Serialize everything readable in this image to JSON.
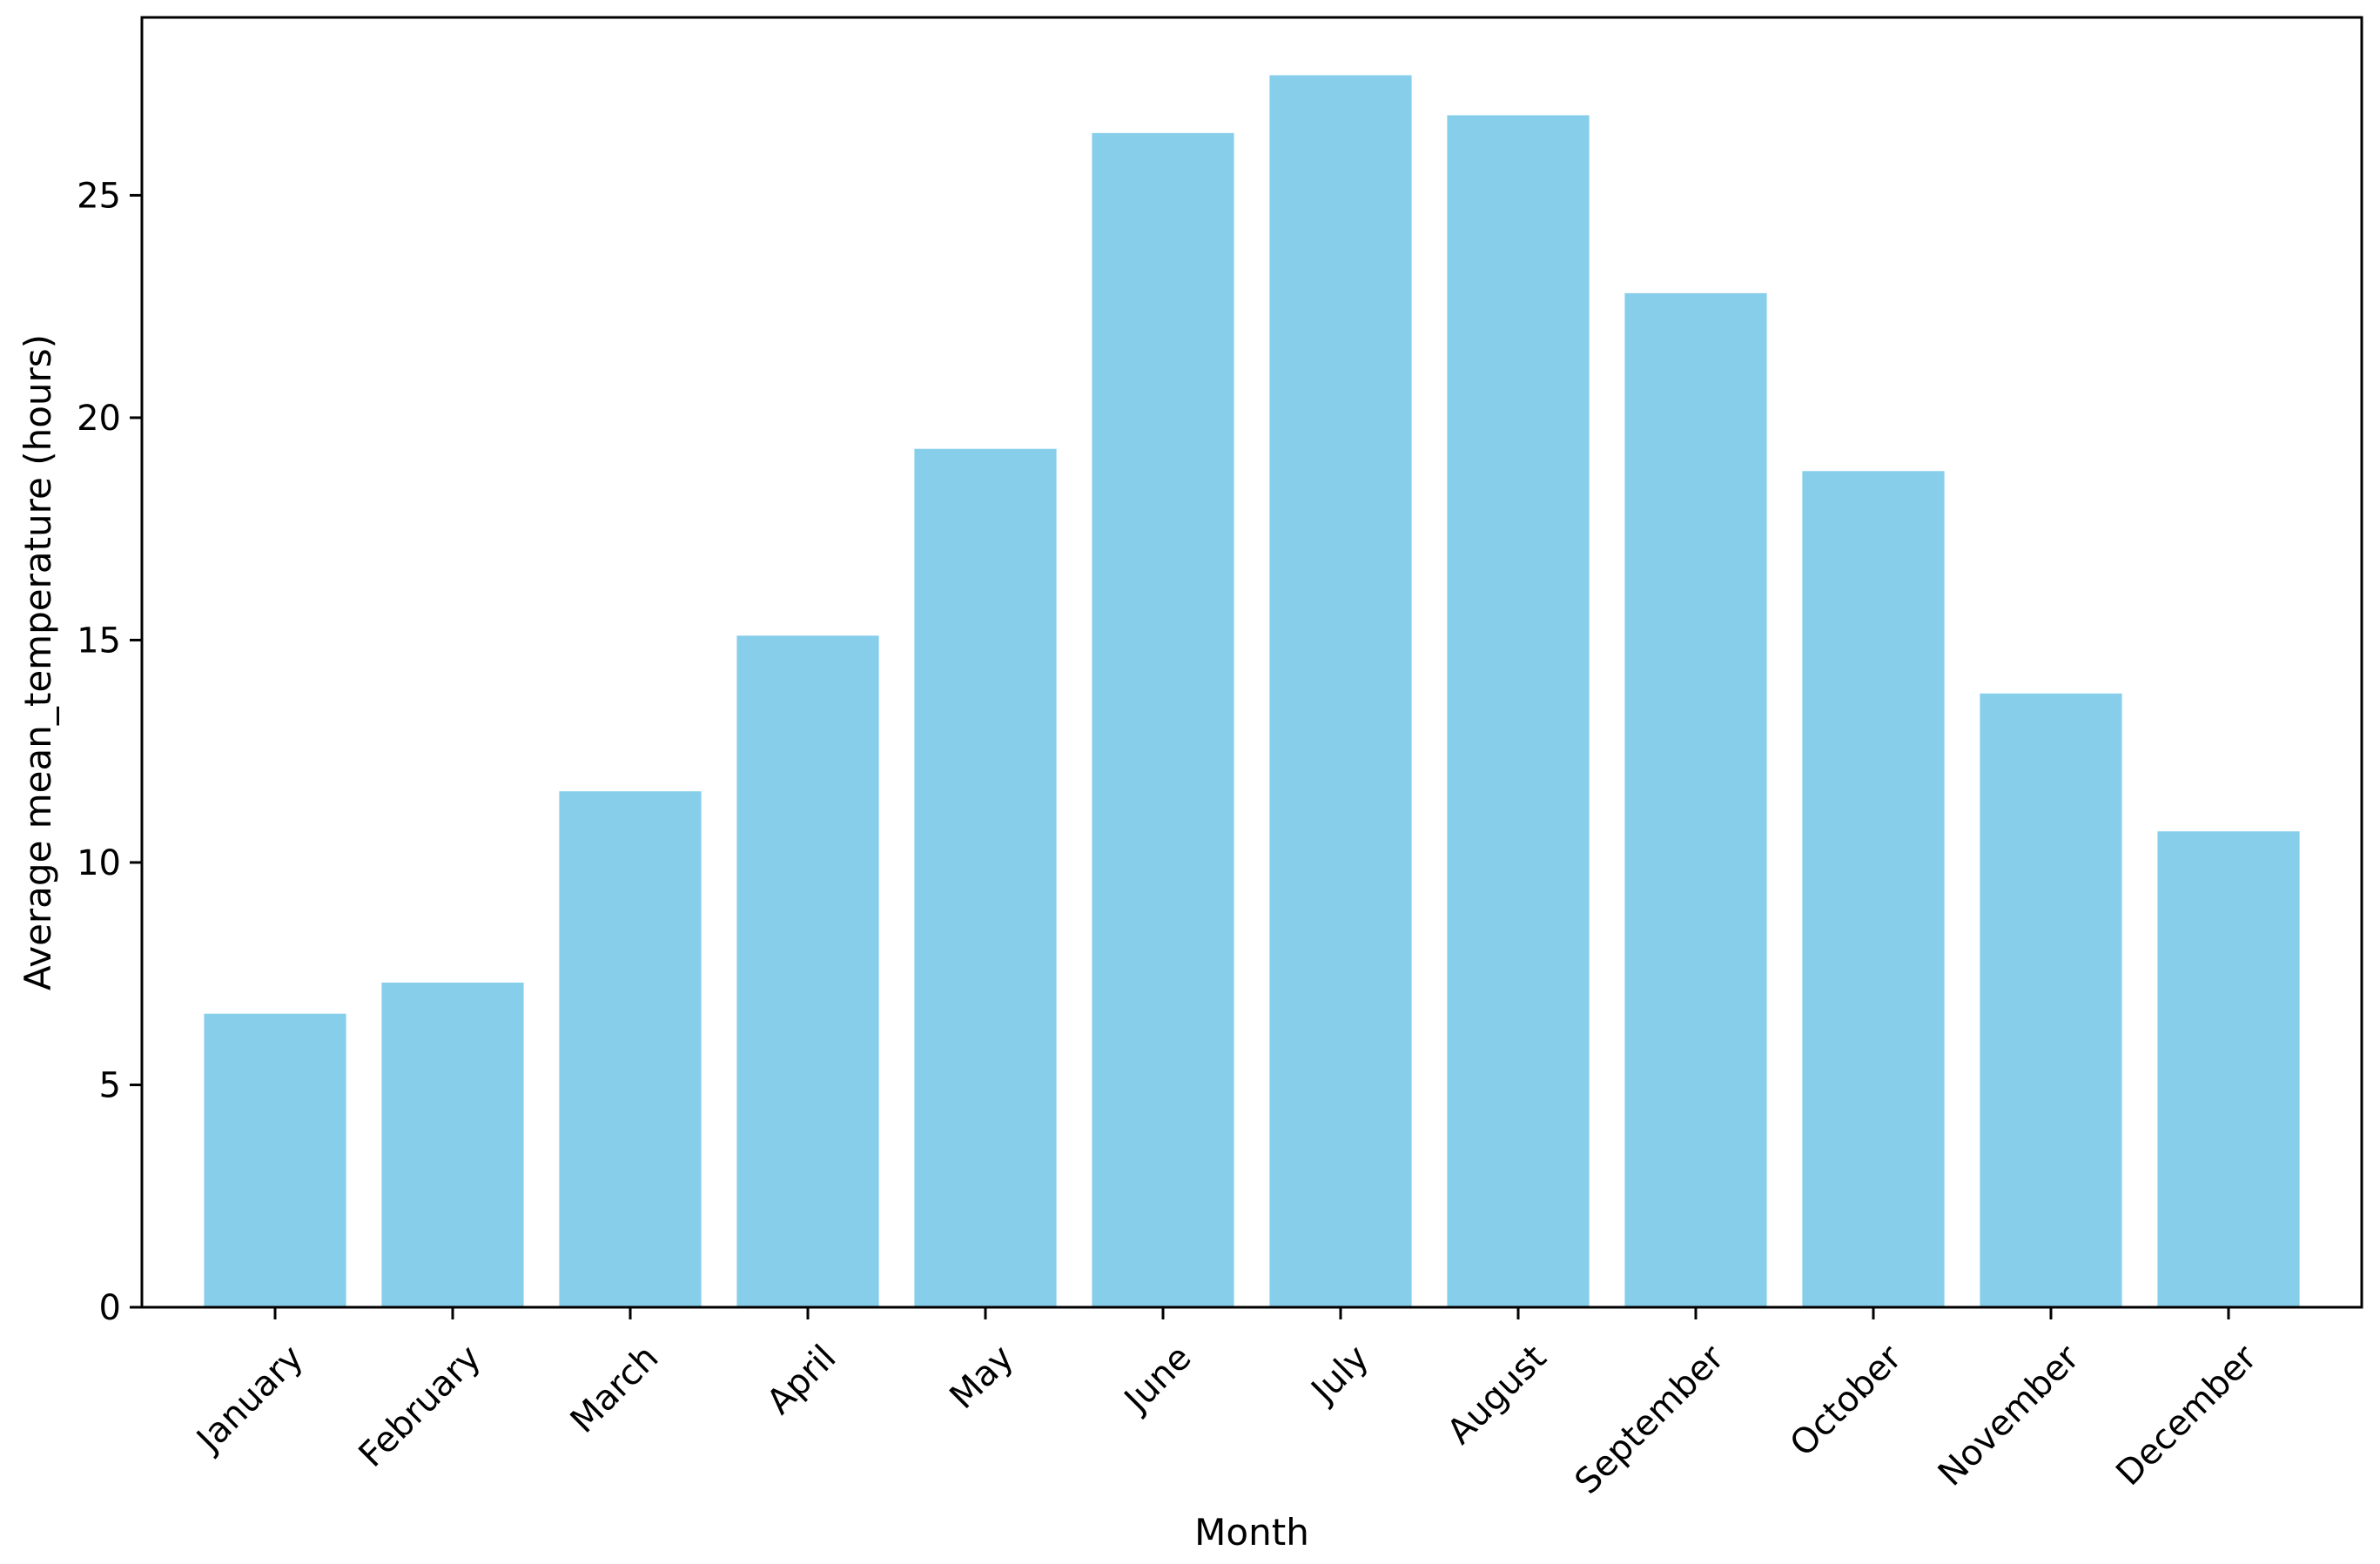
{
  "chart_data": {
    "type": "bar",
    "title": "",
    "xlabel": "Month",
    "ylabel": "Average mean_temperature (hours)",
    "categories": [
      "January",
      "February",
      "March",
      "April",
      "May",
      "June",
      "July",
      "August",
      "September",
      "October",
      "November",
      "December"
    ],
    "values": [
      6.6,
      7.3,
      11.6,
      15.1,
      19.3,
      26.4,
      27.7,
      26.8,
      22.8,
      18.8,
      13.8,
      10.7
    ],
    "ylim": [
      0,
      29.0
    ],
    "yticks": [
      0,
      5,
      10,
      15,
      20,
      25
    ],
    "grid": false,
    "bar_color": "#87CEEB",
    "axis_color": "#000000"
  }
}
